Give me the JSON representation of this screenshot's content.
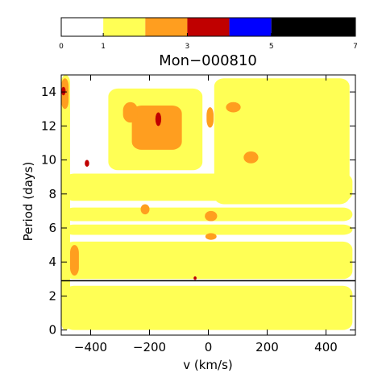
{
  "chart_data": {
    "type": "heatmap",
    "title": "Mon−000810",
    "xlabel": "v (km/s)",
    "ylabel": "Period (days)",
    "xlim": [
      -500,
      500
    ],
    "ylim": [
      -0.3,
      15
    ],
    "xticks": [
      "−400",
      "−200",
      "0",
      "200",
      "400"
    ],
    "xtick_values": [
      -400,
      -200,
      0,
      200,
      400
    ],
    "yticks": [
      "0",
      "2",
      "4",
      "6",
      "8",
      "10",
      "12",
      "14"
    ],
    "ytick_values": [
      0,
      2,
      4,
      6,
      8,
      10,
      12,
      14
    ],
    "reference_line_period": 2.9,
    "colorbar": {
      "tick_labels": [
        "0",
        "1",
        "3",
        "5",
        "7"
      ],
      "tick_values": [
        0,
        1,
        3,
        5,
        7
      ],
      "bins": [
        {
          "from": 0,
          "to": 1,
          "color": "#ffffff"
        },
        {
          "from": 1,
          "to": 2,
          "color": "#ffff55"
        },
        {
          "from": 2,
          "to": 3,
          "color": "#ff9e1f"
        },
        {
          "from": 3,
          "to": 4,
          "color": "#c00000"
        },
        {
          "from": 4,
          "to": 5,
          "color": "#0000ff"
        },
        {
          "from": 5,
          "to": 7,
          "color": "#000000"
        }
      ]
    },
    "regions": [
      {
        "v0": -340,
        "v1": -20,
        "p0": 9.4,
        "p1": 14.2,
        "level": 1
      },
      {
        "v0": 20,
        "v1": 480,
        "p0": 7.4,
        "p1": 14.8,
        "level": 1
      },
      {
        "v0": -490,
        "v1": 490,
        "p0": 7.6,
        "p1": 9.2,
        "level": 1
      },
      {
        "v0": -490,
        "v1": 490,
        "p0": 6.4,
        "p1": 7.2,
        "level": 1
      },
      {
        "v0": -490,
        "v1": 490,
        "p0": 5.6,
        "p1": 6.2,
        "level": 1
      },
      {
        "v0": -490,
        "v1": 490,
        "p0": 3.0,
        "p1": 5.2,
        "level": 1
      },
      {
        "v0": -490,
        "v1": 490,
        "p0": 0.0,
        "p1": 2.6,
        "level": 1
      },
      {
        "v0": -500,
        "v1": -470,
        "p0": 0.0,
        "p1": 15.0,
        "level": 1
      },
      {
        "v0": -260,
        "v1": -90,
        "p0": 10.6,
        "p1": 13.2,
        "level": 2
      },
      {
        "v0": -290,
        "v1": -240,
        "p0": 12.2,
        "p1": 13.4,
        "level": 2
      },
      {
        "v0": -6,
        "v1": 18,
        "p0": 11.9,
        "p1": 13.1,
        "level": 2
      },
      {
        "v0": -12,
        "v1": 30,
        "p0": 6.4,
        "p1": 7.0,
        "level": 2
      },
      {
        "v0": -10,
        "v1": 28,
        "p0": 5.3,
        "p1": 5.7,
        "level": 2
      },
      {
        "v0": 120,
        "v1": 170,
        "p0": 9.8,
        "p1": 10.5,
        "level": 2
      },
      {
        "v0": 60,
        "v1": 110,
        "p0": 12.8,
        "p1": 13.4,
        "level": 2
      },
      {
        "v0": -500,
        "v1": -475,
        "p0": 13.0,
        "p1": 14.8,
        "level": 2
      },
      {
        "v0": -470,
        "v1": -440,
        "p0": 3.2,
        "p1": 5.0,
        "level": 2
      },
      {
        "v0": -230,
        "v1": -200,
        "p0": 6.8,
        "p1": 7.4,
        "level": 2
      },
      {
        "v0": -180,
        "v1": -160,
        "p0": 12.0,
        "p1": 12.8,
        "level": 3
      },
      {
        "v0": -420,
        "v1": -405,
        "p0": 9.6,
        "p1": 10.0,
        "level": 3
      },
      {
        "v0": -50,
        "v1": -40,
        "p0": 2.95,
        "p1": 3.15,
        "level": 3
      },
      {
        "v0": -500,
        "v1": -485,
        "p0": 13.8,
        "p1": 14.3,
        "level": 3
      }
    ]
  }
}
